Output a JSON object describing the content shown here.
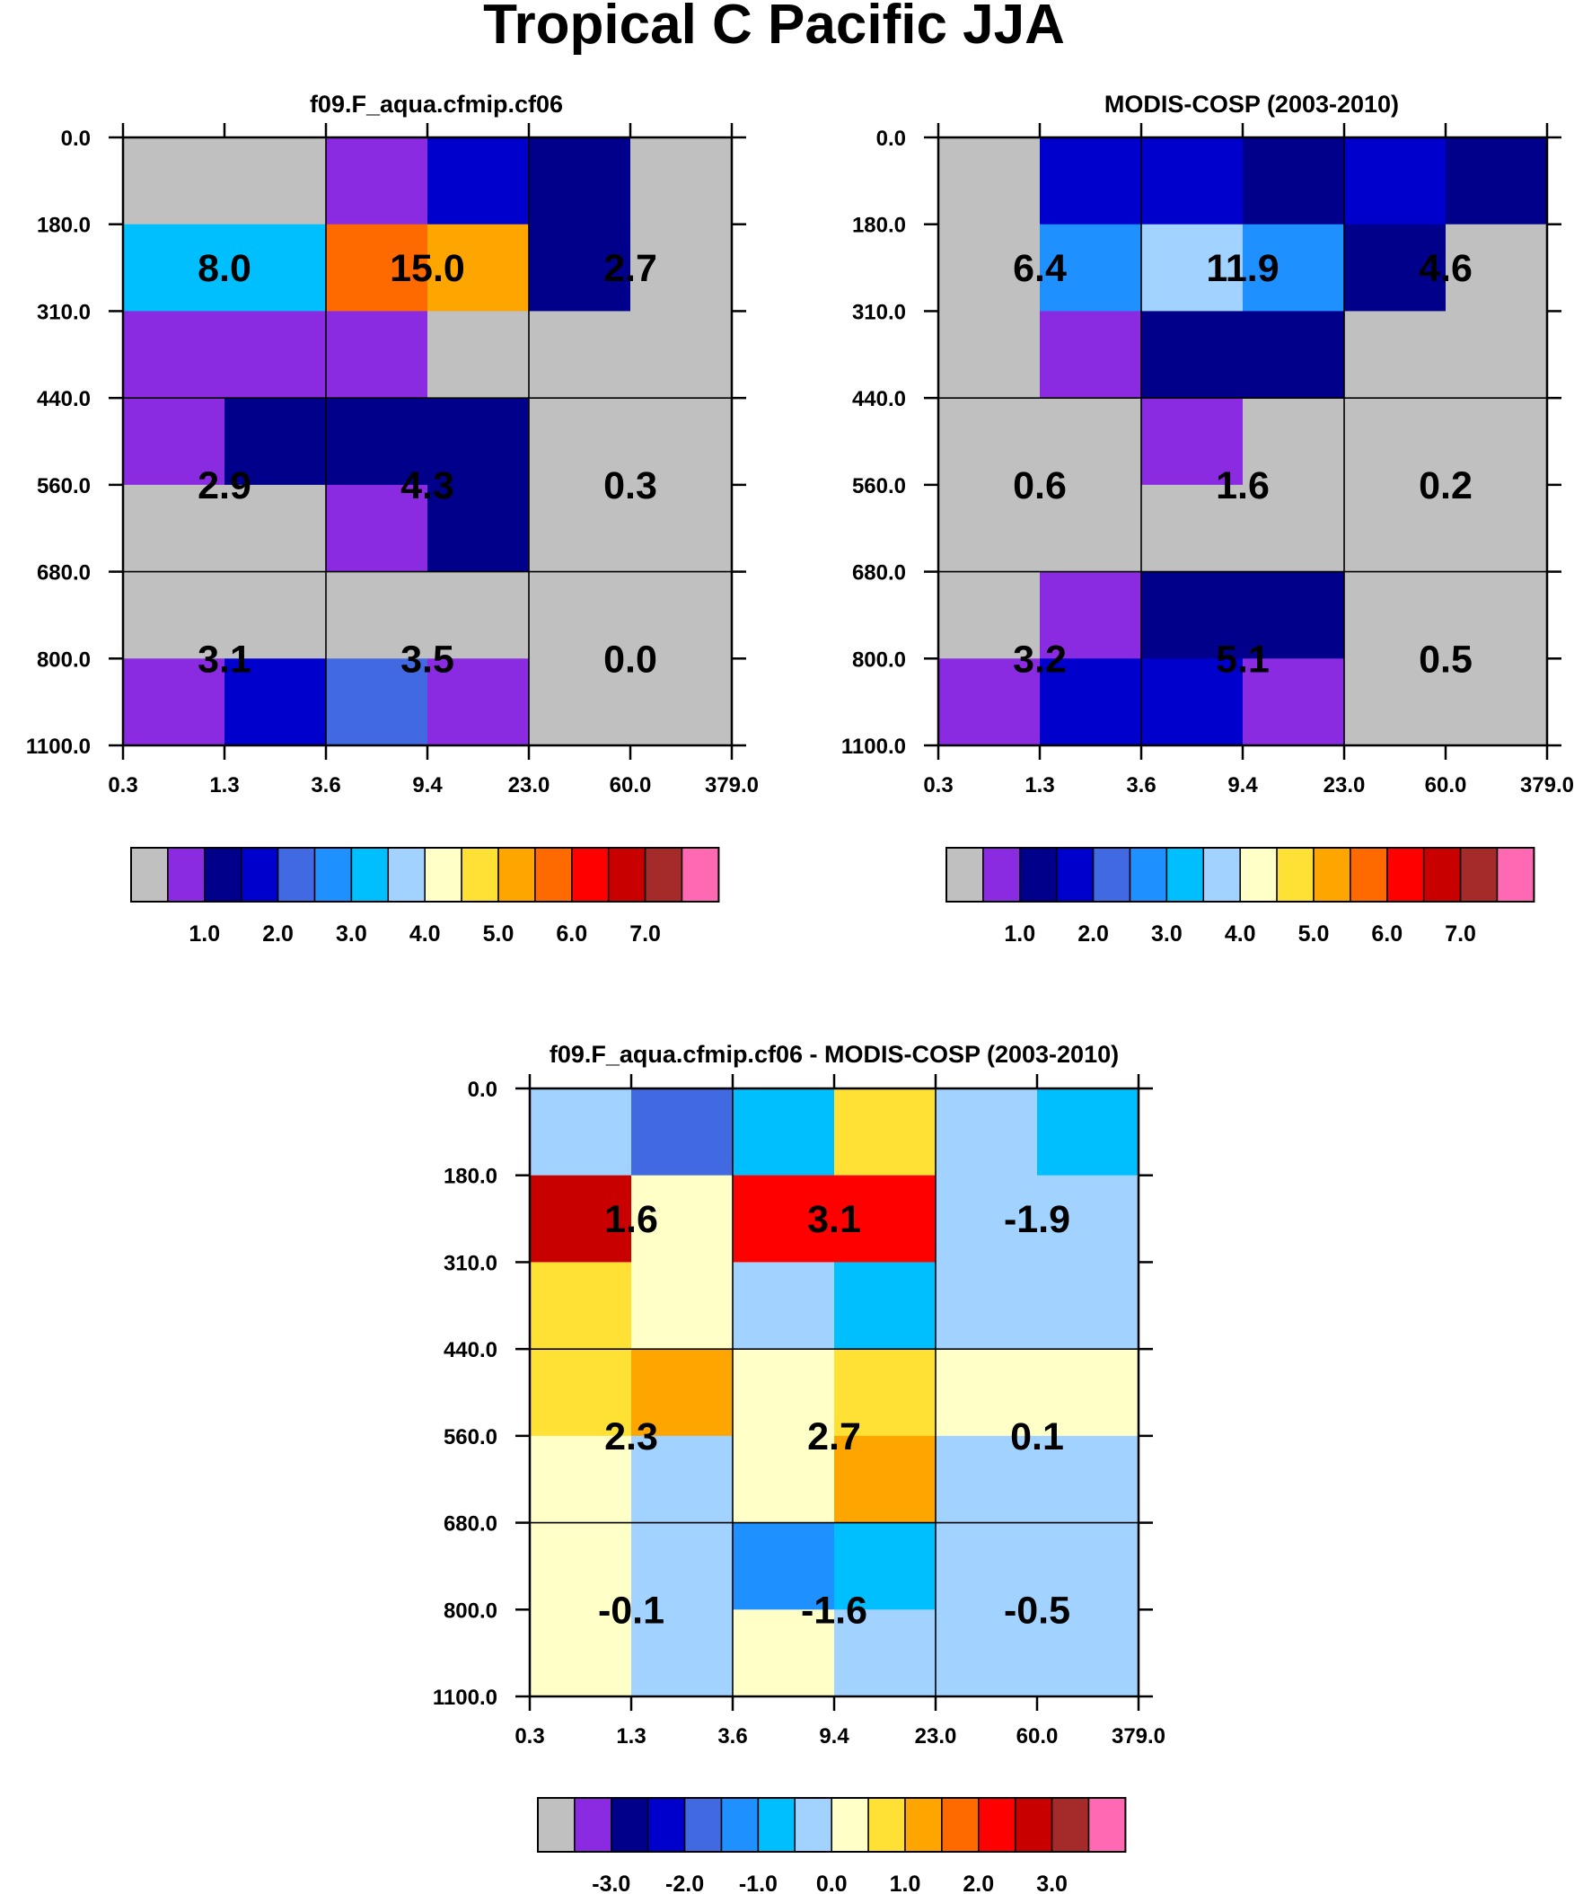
{
  "figure": {
    "title": "Tropical C Pacific JJA",
    "colors_abs": [
      "#c0c0c0",
      "#8a2be2",
      "#00008b",
      "#0000cd",
      "#4169e1",
      "#1e90ff",
      "#00bfff",
      "#a2d2ff",
      "#ffffc8",
      "#ffe135",
      "#ffa500",
      "#ff6a00",
      "#ff0000",
      "#c80000",
      "#a52a2a",
      "#ff69b4"
    ],
    "colors_diff": [
      "#c0c0c0",
      "#8a2be2",
      "#00008b",
      "#0000cd",
      "#4169e1",
      "#1e90ff",
      "#00bfff",
      "#a2d2ff",
      "#ffffc8",
      "#ffe135",
      "#ffa500",
      "#ff6a00",
      "#ff0000",
      "#c80000",
      "#a52a2a",
      "#ff69b4"
    ]
  },
  "chart_data": [
    {
      "type": "heatmap",
      "title": "f09.F_aqua.cfmip.cf06",
      "x_tick_labels": [
        "0.3",
        "1.3",
        "3.6",
        "9.4",
        "23.0",
        "60.0",
        "379.0"
      ],
      "y_tick_labels": [
        "0.0",
        "180.0",
        "310.0",
        "440.0",
        "560.0",
        "680.0",
        "800.0",
        "1100.0"
      ],
      "cell_color_index": [
        [
          0,
          0,
          1,
          3,
          2,
          0
        ],
        [
          6,
          6,
          11,
          10,
          2,
          0
        ],
        [
          1,
          1,
          1,
          0,
          0,
          0
        ],
        [
          1,
          2,
          2,
          2,
          0,
          0
        ],
        [
          0,
          0,
          1,
          2,
          0,
          0
        ],
        [
          0,
          0,
          0,
          0,
          0,
          0
        ],
        [
          1,
          3,
          4,
          1,
          0,
          0
        ]
      ],
      "summary_values": [
        [
          "8.0",
          "15.0",
          "2.7"
        ],
        [
          "2.9",
          "4.3",
          "0.3"
        ],
        [
          "3.1",
          "3.5",
          "0.0"
        ]
      ],
      "colorbar_labels": [
        "1.0",
        "2.0",
        "3.0",
        "4.0",
        "5.0",
        "6.0",
        "7.0"
      ]
    },
    {
      "type": "heatmap",
      "title": "MODIS-COSP (2003-2010)",
      "x_tick_labels": [
        "0.3",
        "1.3",
        "3.6",
        "9.4",
        "23.0",
        "60.0",
        "379.0"
      ],
      "y_tick_labels": [
        "0.0",
        "180.0",
        "310.0",
        "440.0",
        "560.0",
        "680.0",
        "800.0",
        "1100.0"
      ],
      "cell_color_index": [
        [
          0,
          3,
          3,
          2,
          3,
          2
        ],
        [
          0,
          5,
          7,
          5,
          2,
          0
        ],
        [
          0,
          1,
          2,
          2,
          0,
          0
        ],
        [
          0,
          0,
          1,
          0,
          0,
          0
        ],
        [
          0,
          0,
          0,
          0,
          0,
          0
        ],
        [
          0,
          1,
          2,
          2,
          0,
          0
        ],
        [
          1,
          3,
          3,
          1,
          0,
          0
        ]
      ],
      "summary_values": [
        [
          "6.4",
          "11.9",
          "4.6"
        ],
        [
          "0.6",
          "1.6",
          "0.2"
        ],
        [
          "3.2",
          "5.1",
          "0.5"
        ]
      ],
      "colorbar_labels": [
        "1.0",
        "2.0",
        "3.0",
        "4.0",
        "5.0",
        "6.0",
        "7.0"
      ]
    },
    {
      "type": "heatmap",
      "title": "f09.F_aqua.cfmip.cf06 - MODIS-COSP (2003-2010)",
      "x_tick_labels": [
        "0.3",
        "1.3",
        "3.6",
        "9.4",
        "23.0",
        "60.0",
        "379.0"
      ],
      "y_tick_labels": [
        "0.0",
        "180.0",
        "310.0",
        "440.0",
        "560.0",
        "680.0",
        "800.0",
        "1100.0"
      ],
      "cell_color_index": [
        [
          7,
          4,
          6,
          9,
          7,
          6
        ],
        [
          13,
          8,
          12,
          12,
          7,
          7
        ],
        [
          9,
          8,
          7,
          6,
          7,
          7
        ],
        [
          9,
          10,
          8,
          9,
          8,
          8
        ],
        [
          8,
          7,
          8,
          10,
          7,
          7
        ],
        [
          8,
          7,
          5,
          6,
          7,
          7
        ],
        [
          8,
          7,
          8,
          7,
          7,
          7
        ]
      ],
      "summary_values": [
        [
          "1.6",
          "3.1",
          "-1.9"
        ],
        [
          "2.3",
          "2.7",
          "0.1"
        ],
        [
          "-0.1",
          "-1.6",
          "-0.5"
        ]
      ],
      "colorbar_labels": [
        "-3.0",
        "-2.0",
        "-1.0",
        "0.0",
        "1.0",
        "2.0",
        "3.0"
      ]
    }
  ]
}
